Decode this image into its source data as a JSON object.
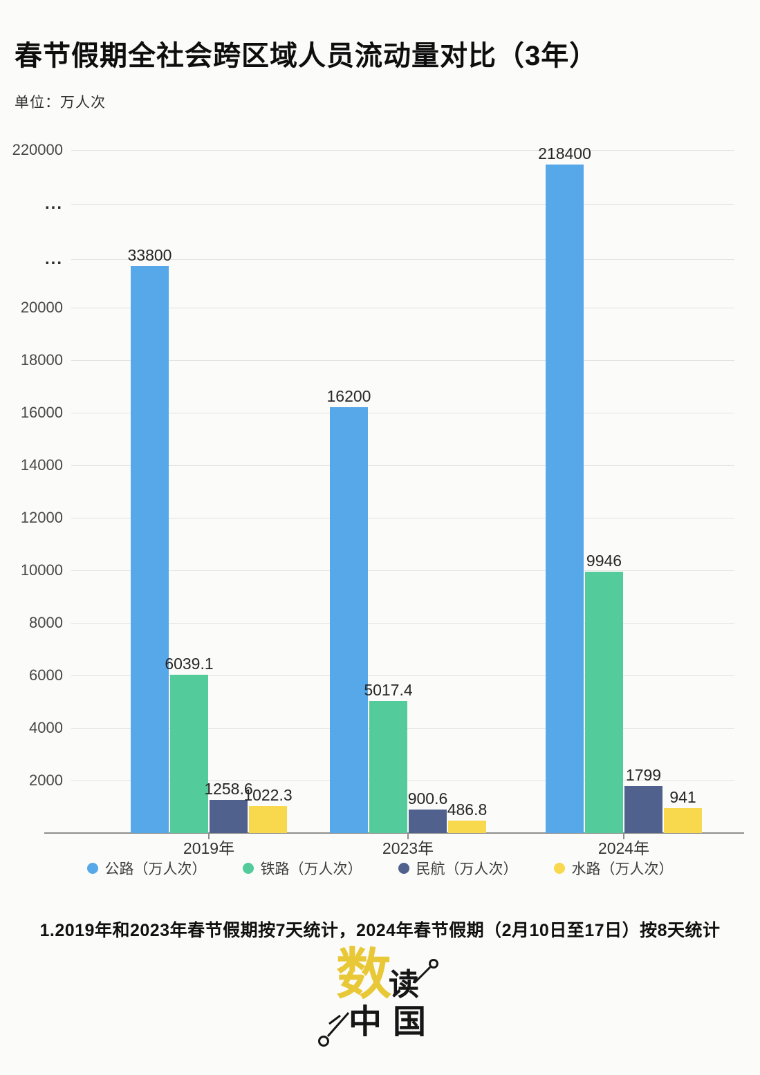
{
  "chart_data": {
    "type": "bar",
    "title": "春节假期全社会跨区域人员流动量对比（3年）",
    "unit_label": "单位：万人次",
    "ylabel": "万人次",
    "categories": [
      "2019年",
      "2023年",
      "2024年"
    ],
    "series": [
      {
        "key": "highway",
        "name": "公路（万人次）",
        "color": "#57a8e9",
        "values": [
          33800,
          16200,
          218400
        ]
      },
      {
        "key": "railway",
        "name": "铁路（万人次）",
        "color": "#54cb9b",
        "values": [
          6039.1,
          5017.4,
          9946
        ]
      },
      {
        "key": "civil-aviation",
        "name": "民航（万人次）",
        "color": "#51618e",
        "values": [
          1258.6,
          900.6,
          1799
        ]
      },
      {
        "key": "waterway",
        "name": "水路（万人次）",
        "color": "#f8d84d",
        "values": [
          1022.3,
          486.8,
          941
        ]
      }
    ],
    "yticks": [
      {
        "label": "2000",
        "value": 2000
      },
      {
        "label": "4000",
        "value": 4000
      },
      {
        "label": "6000",
        "value": 6000
      },
      {
        "label": "8000",
        "value": 8000
      },
      {
        "label": "10000",
        "value": 10000
      },
      {
        "label": "12000",
        "value": 12000
      },
      {
        "label": "14000",
        "value": 14000
      },
      {
        "label": "16000",
        "value": 16000
      },
      {
        "label": "18000",
        "value": 18000
      },
      {
        "label": "20000",
        "value": 20000
      },
      {
        "label": "...",
        "value": 40000,
        "break": true
      },
      {
        "label": "...",
        "value": 120000,
        "break": true
      },
      {
        "label": "220000",
        "value": 220000
      }
    ],
    "y_axis": {
      "linear_range": [
        0,
        20000
      ],
      "broken_above": 20000,
      "top_tick": 220000
    },
    "grid": true,
    "legend_position": "bottom"
  },
  "footnote": "1.2019年和2023年春节假期按7天统计，2024年春节假期（2月10日至17日）按8天统计",
  "logo": {
    "char_main": "数",
    "char_second": "读",
    "char_bottom": "中国"
  }
}
